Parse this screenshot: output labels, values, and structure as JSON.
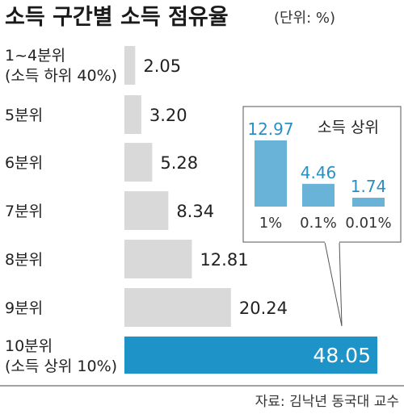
{
  "header": {
    "title": "소득 구간별 소득 점유율",
    "unit": "(단위: %)"
  },
  "chart_data": {
    "type": "bar",
    "orientation": "horizontal",
    "categories": [
      [
        "1~4분위",
        "(소득 하위 40%)"
      ],
      [
        "5분위"
      ],
      [
        "6분위"
      ],
      [
        "7분위"
      ],
      [
        "8분위"
      ],
      [
        "9분위"
      ],
      [
        "10분위",
        "(소득 상위 10%)"
      ]
    ],
    "values": [
      2.05,
      3.2,
      5.28,
      8.34,
      12.81,
      20.24,
      48.05
    ],
    "value_labels": [
      "2.05",
      "3.20",
      "5.28",
      "8.34",
      "12.81",
      "20.24",
      "48.05"
    ],
    "colors": {
      "bar": "#d9d9d9",
      "highlight": "#1e93c8",
      "inset_bar": "#69b3d9",
      "inset_value": "#2a8fc4"
    },
    "xlim": [
      0,
      48.05
    ],
    "inset": {
      "type": "bar",
      "title": "소득 상위",
      "categories": [
        "1%",
        "0.1%",
        "0.01%"
      ],
      "values": [
        12.97,
        4.46,
        1.74
      ],
      "value_labels": [
        "12.97",
        "4.46",
        "1.74"
      ],
      "ylim": [
        0,
        12.97
      ]
    }
  },
  "footer": {
    "source": "자료: 김낙년 동국대 교수"
  }
}
